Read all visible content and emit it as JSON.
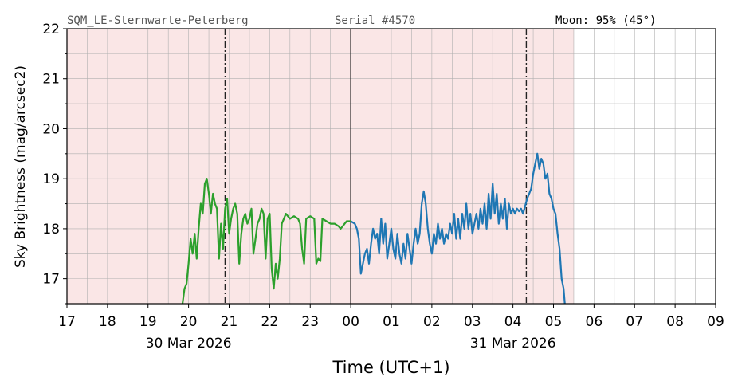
{
  "header": {
    "station": "SQM_LE-Sternwarte-Peterberg",
    "serial": "Serial #4570",
    "moon": "Moon: 95% (45°)"
  },
  "chart_data": {
    "type": "line",
    "ylabel": "Sky Brightness (mag/arcsec2)",
    "xlabel": "Time (UTC+1)",
    "ylim": [
      16.5,
      22
    ],
    "y_ticks": [
      17,
      18,
      19,
      20,
      21,
      22
    ],
    "xlim_hours": [
      17,
      33
    ],
    "x_tick_labels": [
      "17",
      "18",
      "19",
      "20",
      "21",
      "22",
      "23",
      "00",
      "01",
      "02",
      "03",
      "04",
      "05",
      "06",
      "07",
      "08",
      "09"
    ],
    "date_labels": [
      {
        "label": "30 Mar 2026",
        "hour": 20
      },
      {
        "label": "31 Mar 2026",
        "hour": 28
      }
    ],
    "night_shading": {
      "from": 17,
      "to": 29.5,
      "color": "#fae6e6"
    },
    "vertical_lines": [
      {
        "hour": 20.9,
        "style": "dashdot"
      },
      {
        "hour": 24.0,
        "style": "solid"
      },
      {
        "hour": 28.33,
        "style": "dashdot"
      }
    ],
    "grid": true,
    "series": [
      {
        "color": "#2ca02c",
        "points": [
          [
            19.85,
            16.5
          ],
          [
            19.9,
            16.8
          ],
          [
            19.95,
            16.9
          ],
          [
            20.0,
            17.3
          ],
          [
            20.05,
            17.8
          ],
          [
            20.1,
            17.5
          ],
          [
            20.15,
            17.9
          ],
          [
            20.2,
            17.4
          ],
          [
            20.25,
            18.0
          ],
          [
            20.3,
            18.5
          ],
          [
            20.35,
            18.3
          ],
          [
            20.4,
            18.9
          ],
          [
            20.45,
            19.0
          ],
          [
            20.5,
            18.7
          ],
          [
            20.55,
            18.3
          ],
          [
            20.6,
            18.7
          ],
          [
            20.65,
            18.5
          ],
          [
            20.7,
            18.4
          ],
          [
            20.75,
            17.4
          ],
          [
            20.8,
            18.1
          ],
          [
            20.85,
            17.6
          ],
          [
            20.9,
            18.4
          ],
          [
            20.95,
            18.6
          ],
          [
            21.0,
            17.9
          ],
          [
            21.05,
            18.2
          ],
          [
            21.1,
            18.4
          ],
          [
            21.15,
            18.5
          ],
          [
            21.2,
            18.3
          ],
          [
            21.25,
            17.3
          ],
          [
            21.3,
            17.9
          ],
          [
            21.35,
            18.2
          ],
          [
            21.4,
            18.3
          ],
          [
            21.45,
            18.1
          ],
          [
            21.5,
            18.2
          ],
          [
            21.55,
            18.4
          ],
          [
            21.6,
            17.5
          ],
          [
            21.65,
            17.8
          ],
          [
            21.7,
            18.1
          ],
          [
            21.75,
            18.2
          ],
          [
            21.8,
            18.4
          ],
          [
            21.85,
            18.3
          ],
          [
            21.9,
            17.4
          ],
          [
            21.95,
            18.2
          ],
          [
            22.0,
            18.3
          ],
          [
            22.05,
            17.2
          ],
          [
            22.1,
            16.8
          ],
          [
            22.15,
            17.3
          ],
          [
            22.2,
            17.0
          ],
          [
            22.25,
            17.4
          ],
          [
            22.3,
            18.1
          ],
          [
            22.35,
            18.2
          ],
          [
            22.4,
            18.3
          ],
          [
            22.5,
            18.2
          ],
          [
            22.6,
            18.25
          ],
          [
            22.7,
            18.2
          ],
          [
            22.75,
            18.1
          ],
          [
            22.8,
            17.6
          ],
          [
            22.85,
            17.3
          ],
          [
            22.9,
            18.2
          ],
          [
            23.0,
            18.25
          ],
          [
            23.1,
            18.2
          ],
          [
            23.15,
            17.3
          ],
          [
            23.2,
            17.4
          ],
          [
            23.25,
            17.35
          ],
          [
            23.3,
            18.2
          ],
          [
            23.4,
            18.15
          ],
          [
            23.5,
            18.1
          ],
          [
            23.6,
            18.1
          ],
          [
            23.7,
            18.05
          ],
          [
            23.75,
            18.0
          ],
          [
            23.8,
            18.05
          ],
          [
            23.85,
            18.1
          ],
          [
            23.9,
            18.15
          ],
          [
            24.0,
            18.15
          ]
        ]
      },
      {
        "color": "#1f77b4",
        "points": [
          [
            24.0,
            18.15
          ],
          [
            24.1,
            18.1
          ],
          [
            24.15,
            18.0
          ],
          [
            24.2,
            17.8
          ],
          [
            24.25,
            17.1
          ],
          [
            24.3,
            17.3
          ],
          [
            24.35,
            17.5
          ],
          [
            24.4,
            17.6
          ],
          [
            24.45,
            17.3
          ],
          [
            24.5,
            17.7
          ],
          [
            24.55,
            18.0
          ],
          [
            24.6,
            17.8
          ],
          [
            24.65,
            17.9
          ],
          [
            24.7,
            17.5
          ],
          [
            24.75,
            18.2
          ],
          [
            24.8,
            17.7
          ],
          [
            24.85,
            18.1
          ],
          [
            24.9,
            17.4
          ],
          [
            24.95,
            17.7
          ],
          [
            25.0,
            18.0
          ],
          [
            25.05,
            17.6
          ],
          [
            25.1,
            17.4
          ],
          [
            25.15,
            17.9
          ],
          [
            25.2,
            17.5
          ],
          [
            25.25,
            17.3
          ],
          [
            25.3,
            17.7
          ],
          [
            25.35,
            17.4
          ],
          [
            25.4,
            17.9
          ],
          [
            25.45,
            17.6
          ],
          [
            25.5,
            17.3
          ],
          [
            25.55,
            17.7
          ],
          [
            25.6,
            18.0
          ],
          [
            25.65,
            17.7
          ],
          [
            25.7,
            17.9
          ],
          [
            25.75,
            18.5
          ],
          [
            25.8,
            18.75
          ],
          [
            25.85,
            18.5
          ],
          [
            25.9,
            18.0
          ],
          [
            25.95,
            17.7
          ],
          [
            26.0,
            17.5
          ],
          [
            26.05,
            17.9
          ],
          [
            26.1,
            17.7
          ],
          [
            26.15,
            18.1
          ],
          [
            26.2,
            17.8
          ],
          [
            26.25,
            18.0
          ],
          [
            26.3,
            17.7
          ],
          [
            26.35,
            17.9
          ],
          [
            26.4,
            17.8
          ],
          [
            26.45,
            18.1
          ],
          [
            26.5,
            17.9
          ],
          [
            26.55,
            18.3
          ],
          [
            26.6,
            17.8
          ],
          [
            26.65,
            18.2
          ],
          [
            26.7,
            17.8
          ],
          [
            26.75,
            18.3
          ],
          [
            26.8,
            18.0
          ],
          [
            26.85,
            18.5
          ],
          [
            26.9,
            18.0
          ],
          [
            26.95,
            18.3
          ],
          [
            27.0,
            17.9
          ],
          [
            27.05,
            18.1
          ],
          [
            27.1,
            18.3
          ],
          [
            27.15,
            18.0
          ],
          [
            27.2,
            18.4
          ],
          [
            27.25,
            18.1
          ],
          [
            27.3,
            18.5
          ],
          [
            27.35,
            18.0
          ],
          [
            27.4,
            18.7
          ],
          [
            27.45,
            18.2
          ],
          [
            27.5,
            18.9
          ],
          [
            27.55,
            18.3
          ],
          [
            27.6,
            18.7
          ],
          [
            27.65,
            18.1
          ],
          [
            27.7,
            18.5
          ],
          [
            27.75,
            18.2
          ],
          [
            27.8,
            18.6
          ],
          [
            27.85,
            18.0
          ],
          [
            27.9,
            18.5
          ],
          [
            27.95,
            18.3
          ],
          [
            28.0,
            18.4
          ],
          [
            28.05,
            18.3
          ],
          [
            28.1,
            18.4
          ],
          [
            28.15,
            18.35
          ],
          [
            28.2,
            18.4
          ],
          [
            28.25,
            18.3
          ],
          [
            28.3,
            18.45
          ],
          [
            28.35,
            18.6
          ],
          [
            28.4,
            18.7
          ],
          [
            28.45,
            18.8
          ],
          [
            28.5,
            19.1
          ],
          [
            28.55,
            19.3
          ],
          [
            28.6,
            19.5
          ],
          [
            28.65,
            19.2
          ],
          [
            28.7,
            19.4
          ],
          [
            28.75,
            19.3
          ],
          [
            28.8,
            19.0
          ],
          [
            28.85,
            19.1
          ],
          [
            28.9,
            18.7
          ],
          [
            28.95,
            18.6
          ],
          [
            29.0,
            18.4
          ],
          [
            29.05,
            18.3
          ],
          [
            29.1,
            17.9
          ],
          [
            29.15,
            17.6
          ],
          [
            29.2,
            17.0
          ],
          [
            29.25,
            16.8
          ],
          [
            29.28,
            16.5
          ]
        ]
      }
    ]
  }
}
